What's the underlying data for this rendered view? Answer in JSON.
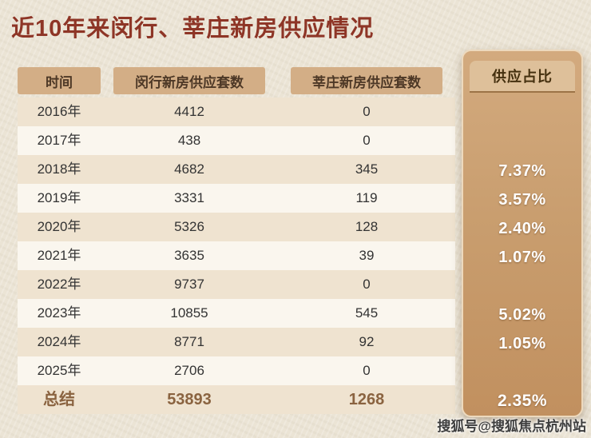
{
  "title": "近10年来闵行、莘庄新房供应情况",
  "watermark": "搜狐号@搜狐焦点杭州站",
  "colors": {
    "title": "#8e3526",
    "header_bg": "#d3ae86",
    "panel_top": "#d3aa7e",
    "panel_bottom": "#c1905f",
    "stripe": "#efe3d0",
    "summary_text": "#8a6340"
  },
  "table": {
    "headers": [
      "时间",
      "闵行新房供应套数",
      "莘庄新房供应套数",
      "供应占比"
    ],
    "rows": [
      {
        "year": "2016年",
        "minhang": "4412",
        "xinzhuang": "0",
        "ratio": ""
      },
      {
        "year": "2017年",
        "minhang": "438",
        "xinzhuang": "0",
        "ratio": ""
      },
      {
        "year": "2018年",
        "minhang": "4682",
        "xinzhuang": "345",
        "ratio": "7.37%"
      },
      {
        "year": "2019年",
        "minhang": "3331",
        "xinzhuang": "119",
        "ratio": "3.57%"
      },
      {
        "year": "2020年",
        "minhang": "5326",
        "xinzhuang": "128",
        "ratio": "2.40%"
      },
      {
        "year": "2021年",
        "minhang": "3635",
        "xinzhuang": "39",
        "ratio": "1.07%"
      },
      {
        "year": "2022年",
        "minhang": "9737",
        "xinzhuang": "0",
        "ratio": ""
      },
      {
        "year": "2023年",
        "minhang": "10855",
        "xinzhuang": "545",
        "ratio": "5.02%"
      },
      {
        "year": "2024年",
        "minhang": "8771",
        "xinzhuang": "92",
        "ratio": "1.05%"
      },
      {
        "year": "2025年",
        "minhang": "2706",
        "xinzhuang": "0",
        "ratio": ""
      },
      {
        "year": "总结",
        "minhang": "53893",
        "xinzhuang": "1268",
        "ratio": "2.35%"
      }
    ]
  },
  "chart_data": {
    "type": "table",
    "title": "近10年来闵行、莘庄新房供应情况",
    "columns": [
      "时间",
      "闵行新房供应套数",
      "莘庄新房供应套数",
      "供应占比"
    ],
    "rows": [
      [
        "2016年",
        4412,
        0,
        null
      ],
      [
        "2017年",
        438,
        0,
        null
      ],
      [
        "2018年",
        4682,
        345,
        "7.37%"
      ],
      [
        "2019年",
        3331,
        119,
        "3.57%"
      ],
      [
        "2020年",
        5326,
        128,
        "2.40%"
      ],
      [
        "2021年",
        3635,
        39,
        "1.07%"
      ],
      [
        "2022年",
        9737,
        0,
        null
      ],
      [
        "2023年",
        10855,
        545,
        "5.02%"
      ],
      [
        "2024年",
        8771,
        92,
        "1.05%"
      ],
      [
        "2025年",
        2706,
        0,
        null
      ],
      [
        "总结",
        53893,
        1268,
        "2.35%"
      ]
    ]
  }
}
